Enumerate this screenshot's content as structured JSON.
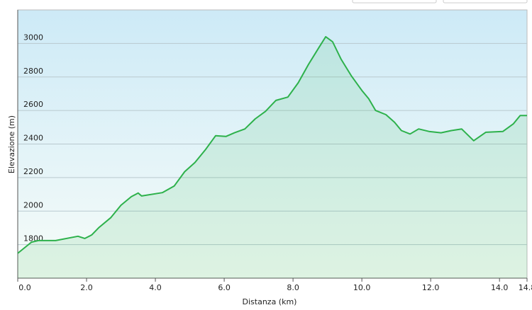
{
  "chart_data": {
    "type": "line",
    "xlabel": "Distanza  (km)",
    "ylabel": "Elevazione (m)",
    "x": [
      0,
      0.4,
      0.6,
      1.1,
      1.75,
      1.95,
      2.15,
      2.35,
      2.7,
      3.0,
      3.3,
      3.5,
      3.6,
      4.2,
      4.55,
      4.85,
      5.15,
      5.45,
      5.75,
      6.05,
      6.3,
      6.6,
      6.9,
      7.2,
      7.5,
      7.85,
      8.15,
      8.45,
      8.75,
      8.95,
      9.15,
      9.4,
      9.7,
      10.0,
      10.2,
      10.4,
      10.7,
      10.95,
      11.15,
      11.4,
      11.65,
      11.95,
      12.3,
      12.6,
      12.9,
      13.25,
      13.6,
      14.1,
      14.4,
      14.6,
      14.8
    ],
    "series": [
      {
        "color": "#2db14b",
        "values": [
          1748,
          1815,
          1824,
          1824,
          1850,
          1837,
          1858,
          1900,
          1960,
          2035,
          2086,
          2108,
          2090,
          2110,
          2150,
          2235,
          2290,
          2365,
          2450,
          2445,
          2467,
          2490,
          2550,
          2595,
          2660,
          2680,
          2765,
          2875,
          2975,
          3040,
          3010,
          2905,
          2805,
          2720,
          2670,
          2600,
          2575,
          2530,
          2480,
          2460,
          2490,
          2475,
          2467,
          2480,
          2490,
          2420,
          2470,
          2475,
          2520,
          2570,
          2570
        ]
      }
    ],
    "xlim": [
      0,
      14.8
    ],
    "ylim": [
      1600,
      3200
    ],
    "xticks": [
      {
        "value": 0,
        "label": "0.0"
      },
      {
        "value": 2,
        "label": "2.0"
      },
      {
        "value": 4,
        "label": "4.0"
      },
      {
        "value": 6,
        "label": "6.0"
      },
      {
        "value": 8,
        "label": "8.0"
      },
      {
        "value": 10,
        "label": "10.0"
      },
      {
        "value": 12,
        "label": "12.0"
      },
      {
        "value": 14,
        "label": "14.0"
      },
      {
        "value": 14.8,
        "label": "14.8"
      }
    ],
    "yticks": [
      1800,
      2000,
      2200,
      2400,
      2600,
      2800,
      3000
    ],
    "grid": true
  }
}
